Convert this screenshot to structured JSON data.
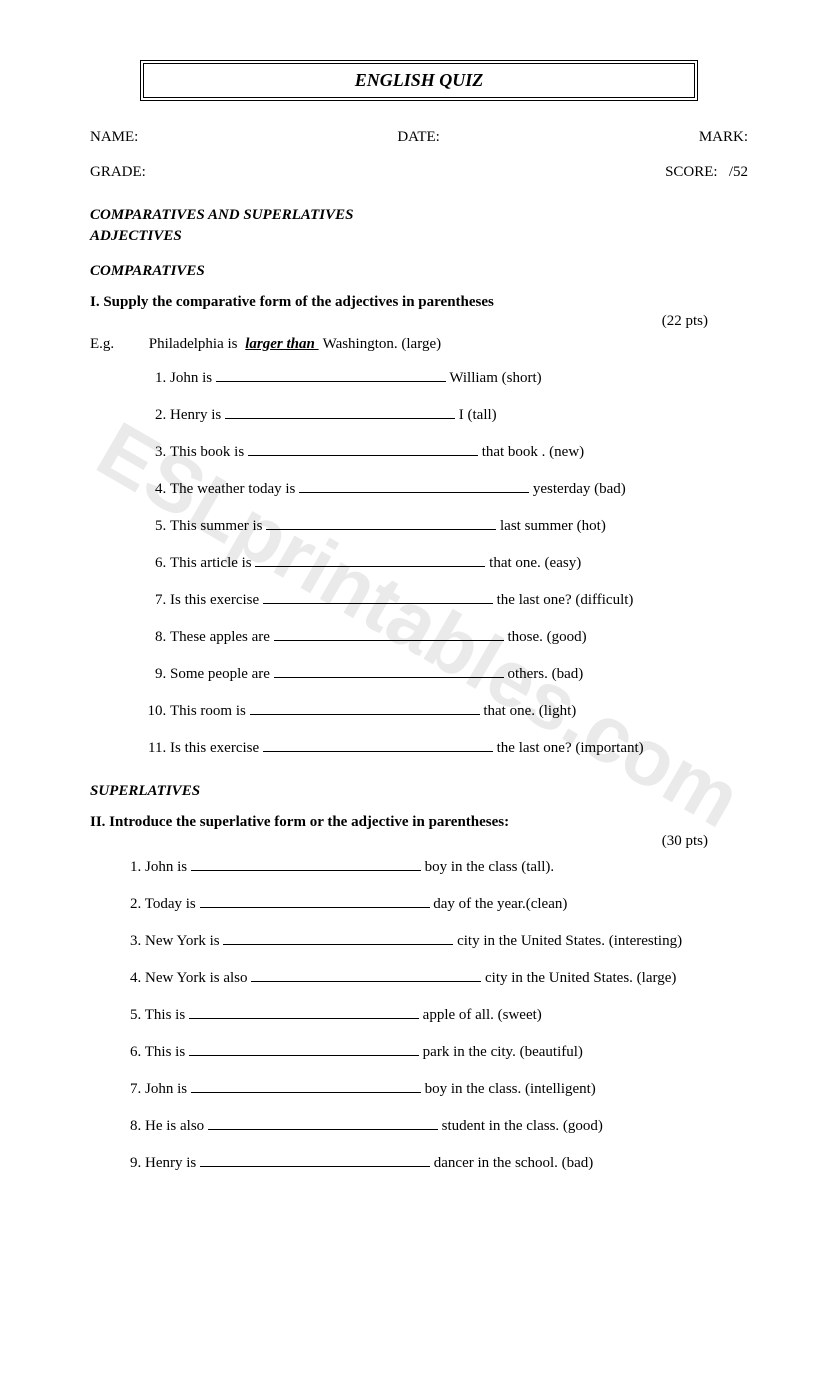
{
  "watermark": "ESLprintables.com",
  "title": "ENGLISH QUIZ",
  "info": {
    "name_label": "NAME:",
    "date_label": "DATE:",
    "mark_label": "MARK:",
    "grade_label": "GRADE:",
    "score_label": "SCORE:",
    "score_value": "/52"
  },
  "section_topic_line1": "COMPARATIVES AND SUPERLATIVES",
  "section_topic_line2": "ADJECTIVES",
  "comparatives": {
    "heading": "COMPARATIVES",
    "instruction": "I. Supply the comparative form of the adjectives in parentheses",
    "points": "(22 pts)",
    "example_label": "E.g.",
    "example_before": "Philadelphia is",
    "example_answer": "  larger than       ",
    "example_after": "Washington. (large)",
    "items": [
      {
        "before": "John is",
        "after": "William (short)"
      },
      {
        "before": "Henry is",
        "after": "I (tall)"
      },
      {
        "before": "This book is",
        "after": "that book . (new)"
      },
      {
        "before": "The weather today is",
        "after": "yesterday (bad)"
      },
      {
        "before": "This summer is",
        "after": "last summer (hot)"
      },
      {
        "before": "This article is",
        "after": "that one. (easy)"
      },
      {
        "before": "Is this exercise",
        "after": "the last one? (difficult)"
      },
      {
        "before": "These apples are",
        "after": "those. (good)"
      },
      {
        "before": "Some people are",
        "after": "others. (bad)"
      },
      {
        "before": "This room is",
        "after": "that one. (light)"
      },
      {
        "before": "Is this exercise",
        "after": "the last one? (important)"
      }
    ]
  },
  "superlatives": {
    "heading": "SUPERLATIVES",
    "instruction": "II. Introduce the superlative form or the adjective in parentheses:",
    "points": "(30 pts)",
    "items": [
      {
        "num": "1.",
        "before": "John is",
        "after": "boy in the class (tall)."
      },
      {
        "num": "2.",
        "before": "Today is",
        "after": "day of the year.(clean)"
      },
      {
        "num": "3.",
        "before": "New York is",
        "after": "city in the United States. (interesting)"
      },
      {
        "num": "4.",
        "before": "New York is also",
        "after": "city in the United States. (large)"
      },
      {
        "num": "5.",
        "before": "This is",
        "after": "apple of all. (sweet)"
      },
      {
        "num": "6.",
        "before": "This is",
        "after": "park in the city. (beautiful)"
      },
      {
        "num": "7.",
        "before": "John is",
        "after": "boy in the class. (intelligent)"
      },
      {
        "num": "8.",
        "before": "He is also",
        "after": "student in the class. (good)"
      },
      {
        "num": "9.",
        "before": "Henry is",
        "after": "dancer in the school. (bad)"
      }
    ]
  },
  "colors": {
    "text": "#000000",
    "background": "#ffffff",
    "watermark": "#d9d9d9",
    "border": "#000000"
  },
  "typography": {
    "body_font": "Times New Roman",
    "title_fontsize": 18,
    "body_fontsize": 15,
    "watermark_fontsize": 80
  }
}
